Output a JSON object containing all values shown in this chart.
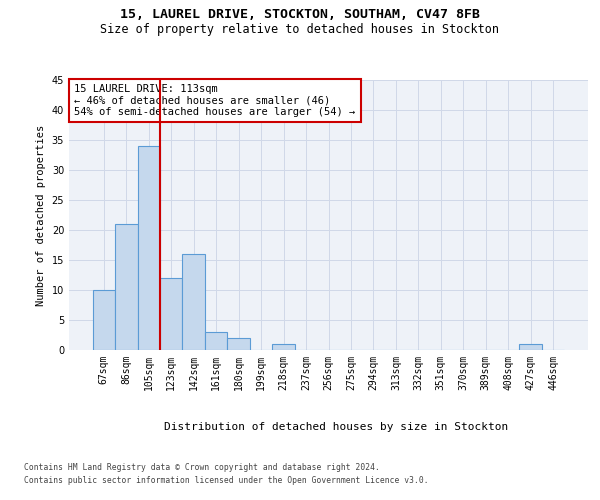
{
  "title1": "15, LAUREL DRIVE, STOCKTON, SOUTHAM, CV47 8FB",
  "title2": "Size of property relative to detached houses in Stockton",
  "xlabel": "Distribution of detached houses by size in Stockton",
  "ylabel": "Number of detached properties",
  "categories": [
    "67sqm",
    "86sqm",
    "105sqm",
    "123sqm",
    "142sqm",
    "161sqm",
    "180sqm",
    "199sqm",
    "218sqm",
    "237sqm",
    "256sqm",
    "275sqm",
    "294sqm",
    "313sqm",
    "332sqm",
    "351sqm",
    "370sqm",
    "389sqm",
    "408sqm",
    "427sqm",
    "446sqm"
  ],
  "values": [
    10,
    21,
    34,
    12,
    16,
    3,
    2,
    0,
    1,
    0,
    0,
    0,
    0,
    0,
    0,
    0,
    0,
    0,
    0,
    1,
    0
  ],
  "bar_color": "#c5d8ed",
  "bar_edge_color": "#5b9bd5",
  "bar_width": 1.0,
  "property_line_x": 2.5,
  "annotation_text": "15 LAUREL DRIVE: 113sqm\n← 46% of detached houses are smaller (46)\n54% of semi-detached houses are larger (54) →",
  "annotation_box_color": "#ffffff",
  "annotation_box_edge": "#cc0000",
  "red_line_color": "#cc0000",
  "ylim": [
    0,
    45
  ],
  "yticks": [
    0,
    5,
    10,
    15,
    20,
    25,
    30,
    35,
    40,
    45
  ],
  "footer1": "Contains HM Land Registry data © Crown copyright and database right 2024.",
  "footer2": "Contains public sector information licensed under the Open Government Licence v3.0.",
  "grid_color": "#d0d8e8",
  "background_color": "#eef2f8",
  "title1_fontsize": 9.5,
  "title2_fontsize": 8.5,
  "ylabel_fontsize": 7.5,
  "xlabel_fontsize": 8,
  "tick_fontsize": 7,
  "ann_fontsize": 7.5,
  "footer_fontsize": 5.8
}
